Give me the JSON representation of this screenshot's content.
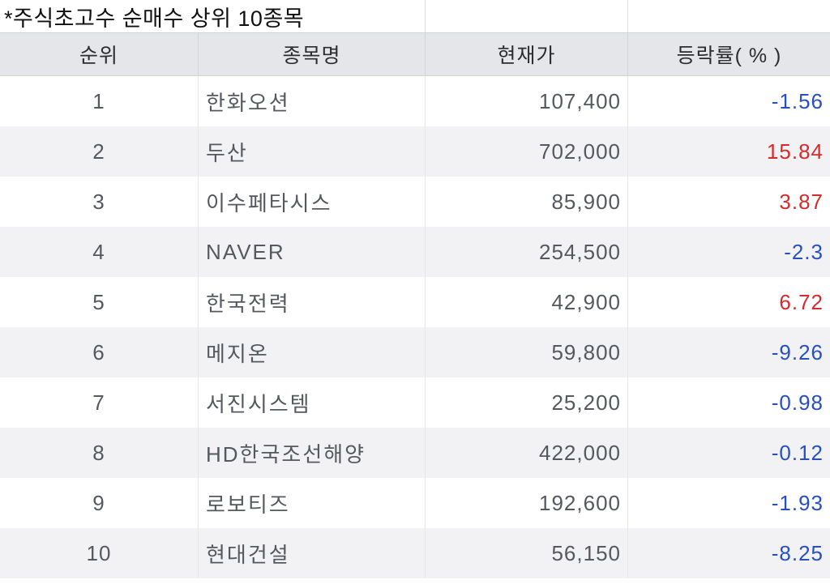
{
  "title": "*주식초고수 순매수 상위 10종목",
  "colors": {
    "up": "#d52b2b",
    "down": "#274fc0",
    "header_bg": "#e4e6e9",
    "alt_row_bg": "#f2f2f4"
  },
  "table": {
    "columns": [
      {
        "key": "rank",
        "label": "순위"
      },
      {
        "key": "name",
        "label": "종목명"
      },
      {
        "key": "price",
        "label": "현재가"
      },
      {
        "key": "change",
        "label": "등락률( % )"
      }
    ],
    "rows": [
      {
        "rank": "1",
        "name": "한화오션",
        "price": "107,400",
        "change": "-1.56",
        "direction": "down"
      },
      {
        "rank": "2",
        "name": "두산",
        "price": "702,000",
        "change": "15.84",
        "direction": "up"
      },
      {
        "rank": "3",
        "name": "이수페타시스",
        "price": "85,900",
        "change": "3.87",
        "direction": "up"
      },
      {
        "rank": "4",
        "name": "NAVER",
        "price": "254,500",
        "change": "-2.3",
        "direction": "down"
      },
      {
        "rank": "5",
        "name": "한국전력",
        "price": "42,900",
        "change": "6.72",
        "direction": "up"
      },
      {
        "rank": "6",
        "name": "메지온",
        "price": "59,800",
        "change": "-9.26",
        "direction": "down"
      },
      {
        "rank": "7",
        "name": "서진시스템",
        "price": "25,200",
        "change": "-0.98",
        "direction": "down"
      },
      {
        "rank": "8",
        "name": "HD한국조선해양",
        "price": "422,000",
        "change": "-0.12",
        "direction": "down"
      },
      {
        "rank": "9",
        "name": "로보티즈",
        "price": "192,600",
        "change": "-1.93",
        "direction": "down"
      },
      {
        "rank": "10",
        "name": "현대건설",
        "price": "56,150",
        "change": "-8.25",
        "direction": "down"
      }
    ]
  }
}
